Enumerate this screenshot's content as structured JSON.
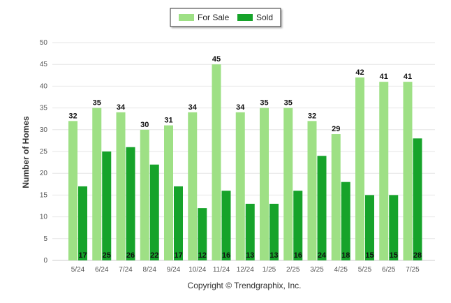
{
  "chart_data": {
    "type": "bar",
    "categories": [
      "5/24",
      "6/24",
      "7/24",
      "8/24",
      "9/24",
      "10/24",
      "11/24",
      "12/24",
      "1/25",
      "2/25",
      "3/25",
      "4/25",
      "5/25",
      "6/25",
      "7/25"
    ],
    "series": [
      {
        "name": "For Sale",
        "color": "#9ee085",
        "values": [
          32,
          35,
          34,
          30,
          31,
          34,
          45,
          34,
          35,
          35,
          32,
          29,
          42,
          41,
          41
        ]
      },
      {
        "name": "Sold",
        "color": "#16a32a",
        "values": [
          17,
          25,
          26,
          22,
          17,
          12,
          16,
          13,
          13,
          16,
          24,
          18,
          15,
          15,
          28
        ]
      }
    ],
    "ylabel": "Number of Homes",
    "ylim": [
      0,
      50
    ],
    "yticks": [
      0,
      5,
      10,
      15,
      20,
      25,
      30,
      35,
      40,
      45,
      50
    ],
    "grid": true,
    "legend": "top-center",
    "credit": "Copyright © Trendgraphix, Inc."
  }
}
